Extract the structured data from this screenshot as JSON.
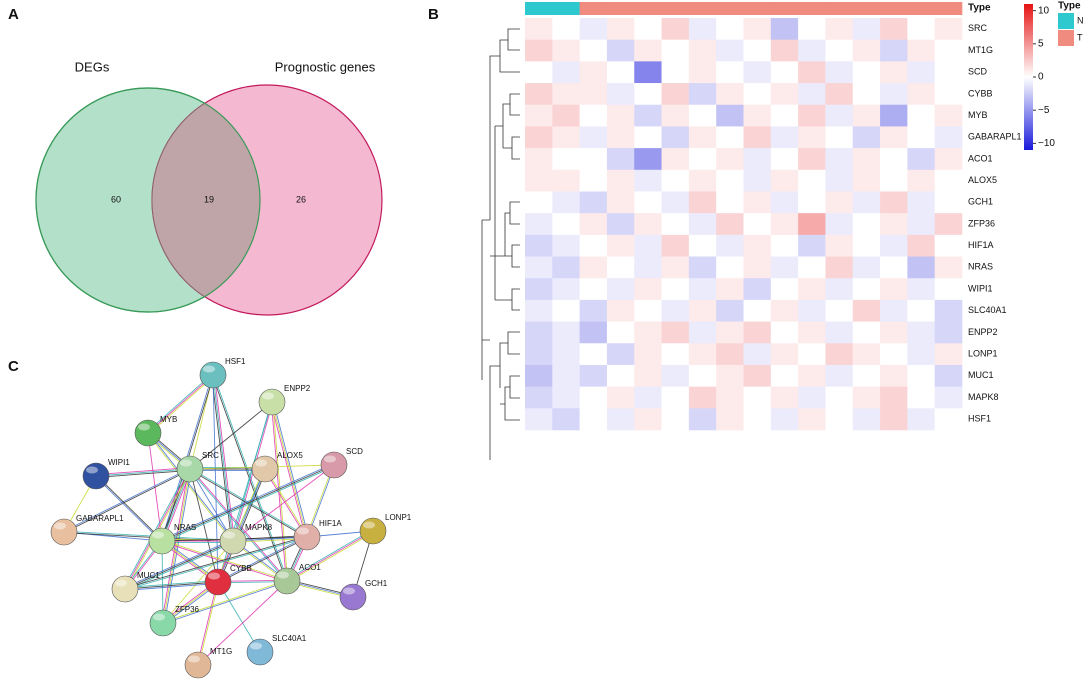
{
  "panels": {
    "a": "A",
    "b": "B",
    "c": "C"
  },
  "venn": {
    "left_label": "DEGs",
    "right_label": "Prognostic genes",
    "left_only": 60,
    "both": 19,
    "right_only": 26
  },
  "heatmap": {
    "type_label": "Type",
    "sample_types": [
      "N",
      "N",
      "T",
      "T",
      "T",
      "T",
      "T",
      "T",
      "T",
      "T",
      "T",
      "T",
      "T",
      "T",
      "T",
      "T"
    ],
    "type_colors": {
      "N": "#2ec9cf",
      "T": "#f08b80"
    },
    "genes": [
      "SRC",
      "MT1G",
      "SCD",
      "CYBB",
      "MYB",
      "GABARAPL1",
      "ACO1",
      "ALOX5",
      "GCH1",
      "ZFP36",
      "HIF1A",
      "NRAS",
      "WIPI1",
      "SLC40A1",
      "ENPP2",
      "LONP1",
      "MUC1",
      "MAPK8",
      "HSF1"
    ],
    "values": [
      [
        1,
        0,
        -1,
        1,
        0,
        2,
        -1,
        0,
        1,
        -3,
        0,
        1,
        -1,
        2,
        0,
        1
      ],
      [
        2,
        1,
        0,
        -2,
        1,
        0,
        1,
        -1,
        0,
        2,
        -1,
        0,
        1,
        -2,
        1,
        0
      ],
      [
        0,
        -1,
        1,
        0,
        -6,
        0,
        1,
        0,
        -1,
        0,
        2,
        -1,
        0,
        1,
        -1,
        0
      ],
      [
        2,
        1,
        1,
        -1,
        0,
        2,
        -2,
        1,
        0,
        1,
        -1,
        2,
        0,
        -1,
        1,
        0
      ],
      [
        1,
        2,
        0,
        1,
        -2,
        1,
        0,
        -3,
        1,
        0,
        2,
        -1,
        1,
        -4,
        0,
        1
      ],
      [
        2,
        1,
        -1,
        1,
        0,
        -2,
        1,
        0,
        2,
        -1,
        1,
        0,
        -2,
        1,
        0,
        -1
      ],
      [
        1,
        0,
        0,
        -2,
        -5,
        1,
        0,
        1,
        -1,
        0,
        2,
        -1,
        1,
        0,
        -2,
        1
      ],
      [
        1,
        1,
        0,
        1,
        -1,
        0,
        1,
        0,
        -1,
        1,
        0,
        -1,
        1,
        0,
        1,
        0
      ],
      [
        0,
        -1,
        -2,
        1,
        0,
        -1,
        2,
        0,
        1,
        -1,
        0,
        1,
        -1,
        2,
        -1,
        0
      ],
      [
        -1,
        0,
        1,
        -2,
        1,
        0,
        -1,
        2,
        0,
        1,
        4,
        -1,
        0,
        1,
        -1,
        2
      ],
      [
        -2,
        -1,
        0,
        1,
        -1,
        2,
        0,
        -1,
        1,
        0,
        -2,
        1,
        0,
        -1,
        2,
        0
      ],
      [
        -1,
        -2,
        1,
        0,
        -1,
        1,
        -2,
        0,
        1,
        -1,
        0,
        2,
        -1,
        0,
        -3,
        1
      ],
      [
        -2,
        -1,
        0,
        -1,
        1,
        0,
        -1,
        1,
        -2,
        0,
        1,
        -1,
        0,
        1,
        -1,
        0
      ],
      [
        -1,
        0,
        -2,
        1,
        0,
        -1,
        1,
        -2,
        0,
        1,
        -1,
        0,
        2,
        -1,
        0,
        -2
      ],
      [
        -2,
        -1,
        -3,
        0,
        1,
        2,
        -1,
        1,
        2,
        0,
        1,
        -1,
        0,
        1,
        -1,
        -2
      ],
      [
        -2,
        -1,
        0,
        -2,
        1,
        0,
        1,
        2,
        -1,
        1,
        0,
        2,
        1,
        0,
        -1,
        1
      ],
      [
        -3,
        -1,
        -2,
        0,
        1,
        -1,
        0,
        1,
        2,
        0,
        1,
        -1,
        0,
        1,
        0,
        -2
      ],
      [
        -2,
        -1,
        0,
        1,
        -1,
        0,
        2,
        1,
        0,
        1,
        -1,
        0,
        1,
        2,
        0,
        -1
      ],
      [
        -1,
        -2,
        0,
        -1,
        1,
        0,
        -2,
        1,
        0,
        -1,
        1,
        0,
        -1,
        2,
        -1,
        0
      ]
    ],
    "color_scale": {
      "lim": [
        -11,
        11
      ],
      "ticks": [
        {
          "value": 10,
          "label": "10"
        },
        {
          "value": 5,
          "label": "5"
        },
        {
          "value": 0,
          "label": "0"
        },
        {
          "value": -5,
          "label": "−5"
        },
        {
          "value": -10,
          "label": "−10"
        }
      ]
    }
  },
  "network": {
    "nodes": [
      {
        "label": "HSF1",
        "color": "#6cbfbf"
      },
      {
        "label": "ENPP2",
        "color": "#c8e0a8"
      },
      {
        "label": "MYB",
        "color": "#5cb85c"
      },
      {
        "label": "SRC",
        "color": "#a8d8a8"
      },
      {
        "label": "ALOX5",
        "color": "#e0c8a8"
      },
      {
        "label": "SCD",
        "color": "#d89aa8"
      },
      {
        "label": "WIPI1",
        "color": "#3050a0"
      },
      {
        "label": "GABARAPL1",
        "color": "#e8c0a0"
      },
      {
        "label": "NRAS",
        "color": "#b8e0a0"
      },
      {
        "label": "MAPK8",
        "color": "#d0d8b0"
      },
      {
        "label": "HIF1A",
        "color": "#e0b0a8"
      },
      {
        "label": "LONP1",
        "color": "#c8b040"
      },
      {
        "label": "MUC1",
        "color": "#e8e0b8"
      },
      {
        "label": "CYBB",
        "color": "#e03040"
      },
      {
        "label": "ACO1",
        "color": "#a8c898"
      },
      {
        "label": "GCH1",
        "color": "#9878d0"
      },
      {
        "label": "ZFP36",
        "color": "#88d8a8"
      },
      {
        "label": "SLC40A1",
        "color": "#80b8d8"
      },
      {
        "label": "MT1G",
        "color": "#e0b898"
      }
    ]
  }
}
